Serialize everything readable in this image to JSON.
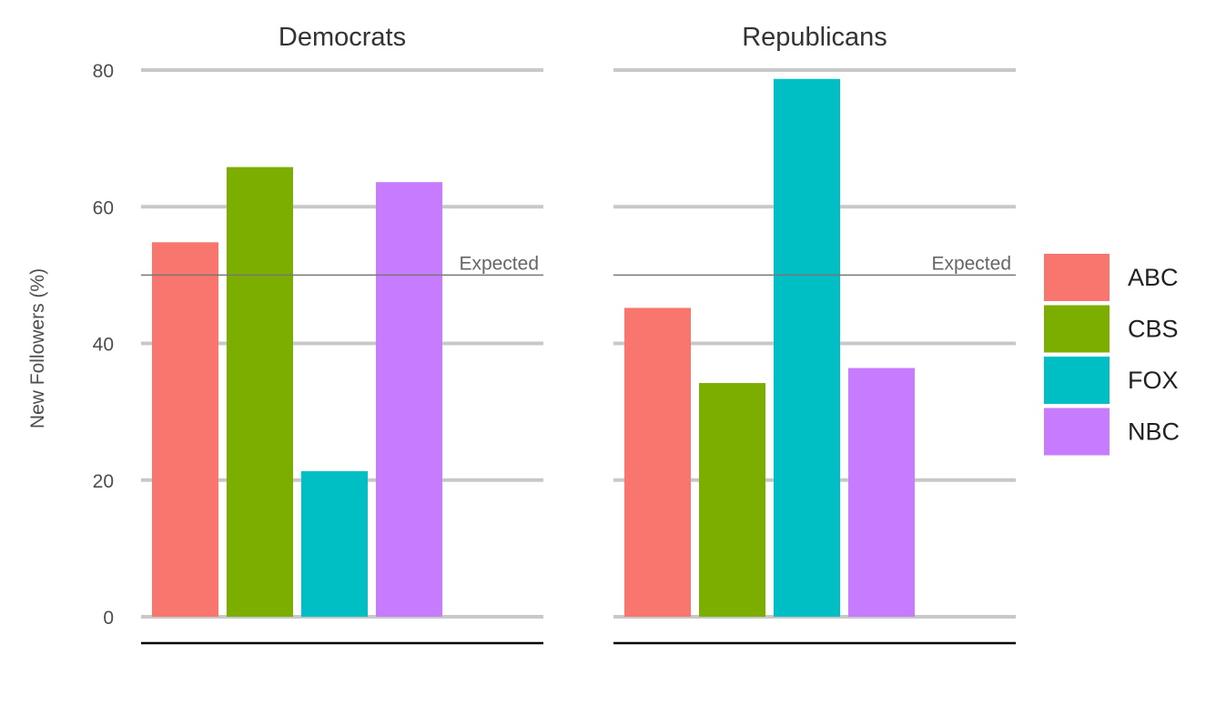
{
  "chart_data": {
    "type": "bar",
    "ylabel": "New Followers (%)",
    "ylim": [
      0,
      80
    ],
    "yticks": [
      0,
      20,
      40,
      60,
      80
    ],
    "grid": true,
    "legend_position": "right",
    "reference_line": {
      "value": 50,
      "label": "Expected"
    },
    "categories": [
      "ABC",
      "CBS",
      "FOX",
      "NBC"
    ],
    "colors": {
      "ABC": "#F8766D",
      "CBS": "#7CAE00",
      "FOX": "#00BFC4",
      "NBC": "#C77CFF"
    },
    "facets": [
      {
        "title": "Democrats",
        "values": [
          54.8,
          65.8,
          21.3,
          63.6
        ]
      },
      {
        "title": "Republicans",
        "values": [
          45.2,
          34.2,
          78.7,
          36.4
        ]
      }
    ]
  }
}
